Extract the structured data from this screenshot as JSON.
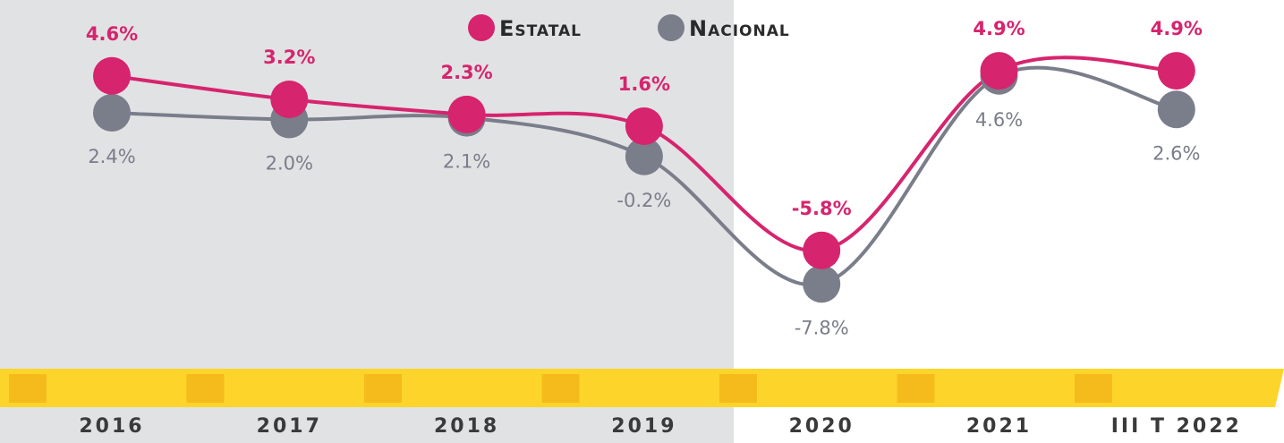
{
  "chart_data": {
    "type": "line",
    "categories": [
      "2016",
      "2017",
      "2018",
      "2019",
      "2020",
      "2021",
      "III T 2022"
    ],
    "series": [
      {
        "name": "Estatal",
        "color": "#d6246e",
        "values": [
          4.6,
          3.2,
          2.3,
          1.6,
          -5.8,
          4.9,
          4.9
        ],
        "value_labels": [
          "4.6%",
          "3.2%",
          "2.3%",
          "1.6%",
          "-5.8%",
          "4.9%",
          "4.9%"
        ]
      },
      {
        "name": "Nacional",
        "color": "#7a7d8a",
        "values": [
          2.4,
          2.0,
          2.1,
          -0.2,
          -7.8,
          4.6,
          2.6
        ],
        "value_labels": [
          "2.4%",
          "2.0%",
          "2.1%",
          "-0.2%",
          "-7.8%",
          "4.6%",
          "2.6%"
        ]
      }
    ],
    "legend": "top"
  }
}
